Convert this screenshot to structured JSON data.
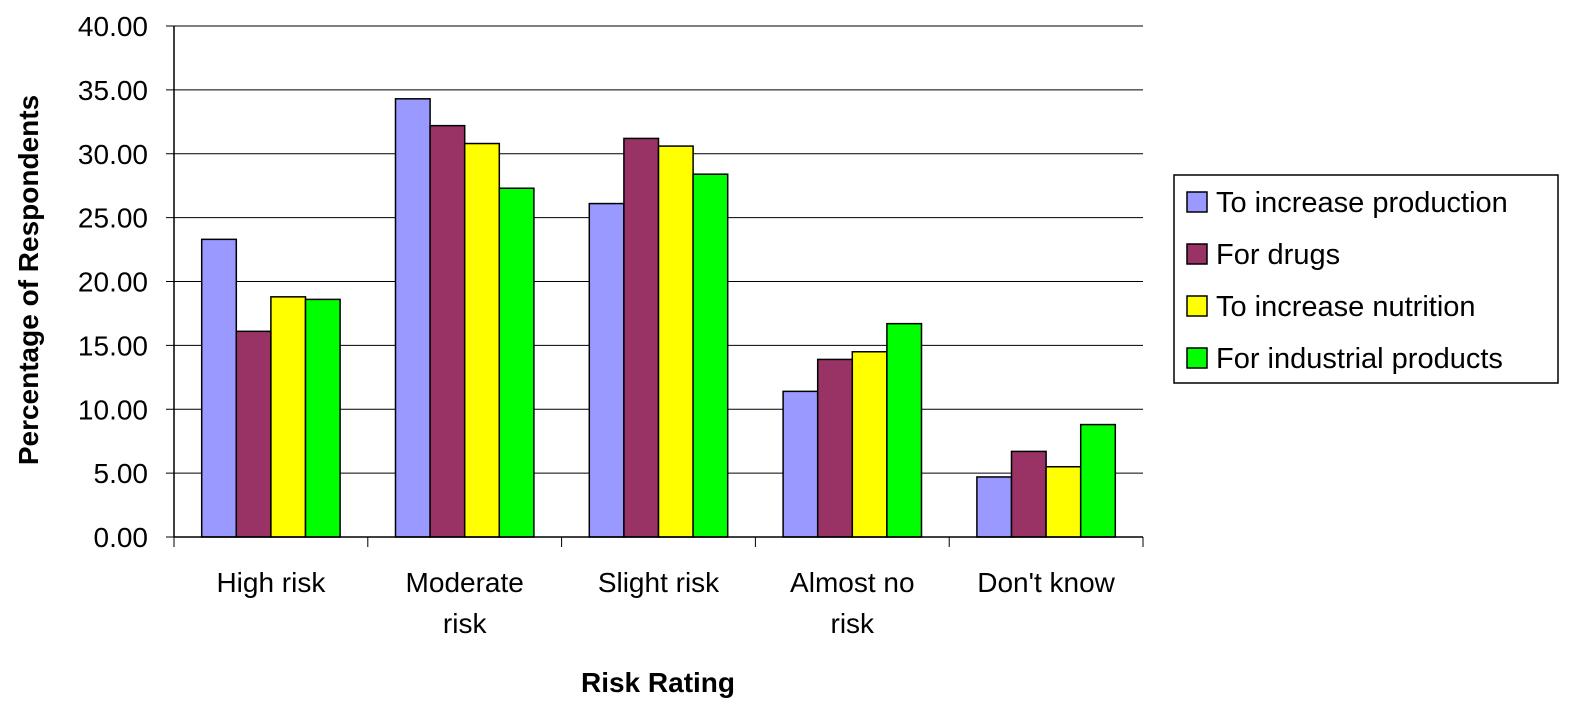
{
  "chart_data": {
    "type": "bar",
    "title": "",
    "xlabel": "Risk Rating",
    "ylabel": "Percentage of Respondents",
    "ylim": [
      0,
      40
    ],
    "yticks": [
      "0.00",
      "5.00",
      "10.00",
      "15.00",
      "20.00",
      "25.00",
      "30.00",
      "35.00",
      "40.00"
    ],
    "grid": true,
    "legend_position": "right",
    "categories": [
      [
        "High risk"
      ],
      [
        "Moderate",
        "risk"
      ],
      [
        "Slight risk"
      ],
      [
        "Almost no",
        "risk"
      ],
      [
        "Don't know"
      ]
    ],
    "series": [
      {
        "name": "To increase production",
        "color": "#9999ff",
        "values": [
          23.3,
          34.3,
          26.1,
          11.4,
          4.7
        ]
      },
      {
        "name": "For drugs",
        "color": "#993366",
        "values": [
          16.1,
          32.2,
          31.2,
          13.9,
          6.7
        ]
      },
      {
        "name": "To increase nutrition",
        "color": "#ffff00",
        "values": [
          18.8,
          30.8,
          30.6,
          14.5,
          5.5
        ]
      },
      {
        "name": "For industrial products",
        "color": "#00ff00",
        "values": [
          18.6,
          27.3,
          28.4,
          16.7,
          8.8
        ]
      }
    ]
  }
}
